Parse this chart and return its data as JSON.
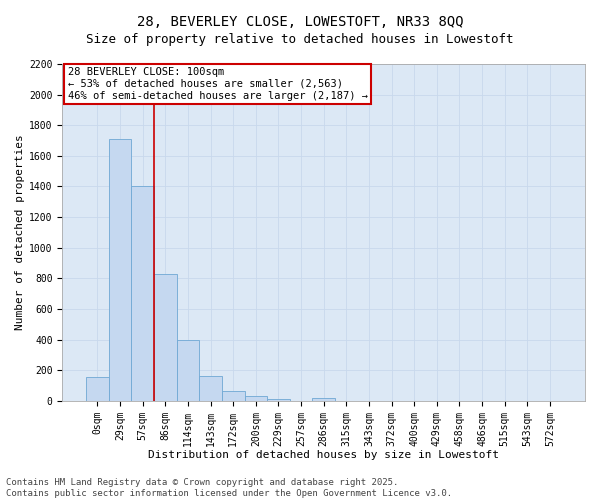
{
  "title_line1": "28, BEVERLEY CLOSE, LOWESTOFT, NR33 8QQ",
  "title_line2": "Size of property relative to detached houses in Lowestoft",
  "xlabel": "Distribution of detached houses by size in Lowestoft",
  "ylabel": "Number of detached properties",
  "bar_color": "#c5d8f0",
  "bar_edge_color": "#6fa8d4",
  "grid_color": "#c8d8ec",
  "background_color": "#dce8f5",
  "categories": [
    "0sqm",
    "29sqm",
    "57sqm",
    "86sqm",
    "114sqm",
    "143sqm",
    "172sqm",
    "200sqm",
    "229sqm",
    "257sqm",
    "286sqm",
    "315sqm",
    "343sqm",
    "372sqm",
    "400sqm",
    "429sqm",
    "458sqm",
    "486sqm",
    "515sqm",
    "543sqm",
    "572sqm"
  ],
  "values": [
    155,
    1710,
    1400,
    830,
    400,
    160,
    65,
    30,
    15,
    0,
    20,
    0,
    0,
    0,
    0,
    0,
    0,
    0,
    0,
    0,
    0
  ],
  "ylim": [
    0,
    2200
  ],
  "yticks": [
    0,
    200,
    400,
    600,
    800,
    1000,
    1200,
    1400,
    1600,
    1800,
    2000,
    2200
  ],
  "vline_x": 2.5,
  "vline_color": "#cc0000",
  "annotation_text_line1": "28 BEVERLEY CLOSE: 100sqm",
  "annotation_text_line2": "← 53% of detached houses are smaller (2,563)",
  "annotation_text_line3": "46% of semi-detached houses are larger (2,187) →",
  "footer_line1": "Contains HM Land Registry data © Crown copyright and database right 2025.",
  "footer_line2": "Contains public sector information licensed under the Open Government Licence v3.0.",
  "title_fontsize": 10,
  "subtitle_fontsize": 9,
  "axis_label_fontsize": 8,
  "tick_fontsize": 7,
  "annotation_fontsize": 7.5,
  "footer_fontsize": 6.5
}
